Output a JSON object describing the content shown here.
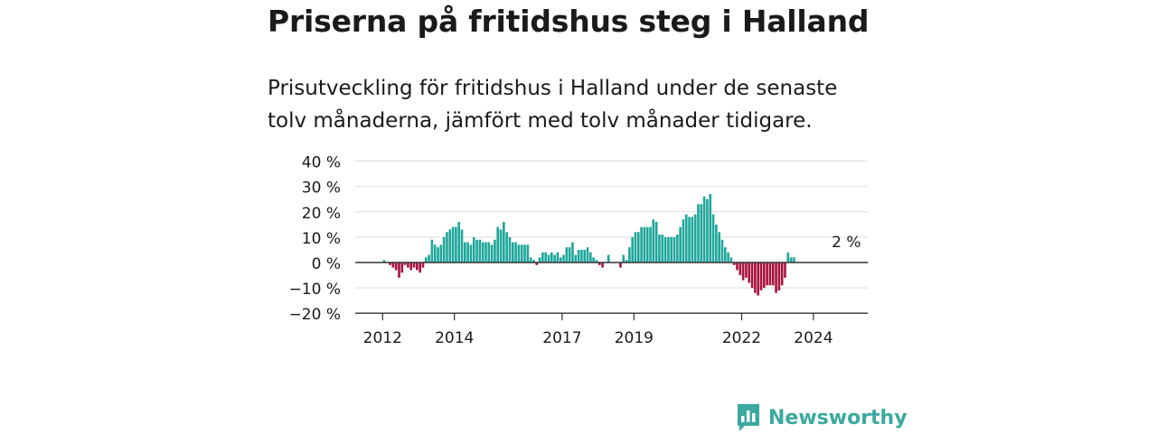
{
  "title": "Priserna på fritidshus steg i Halland",
  "subtitle": "Prisutveckling för fritidshus i Halland under de senaste tolv månaderna, jämfört med tolv månader tidigare.",
  "brand": "Newsworthy",
  "colors": {
    "positive": "#1ea69a",
    "negative": "#a8123e",
    "grid": "#dcdcdc",
    "axis": "#333333",
    "brand": "#3aa99f"
  },
  "chart_data": {
    "type": "bar",
    "ylim": [
      -20,
      40
    ],
    "yticks": [
      {
        "value": 40,
        "label": "40 %"
      },
      {
        "value": 30,
        "label": "30 %"
      },
      {
        "value": 20,
        "label": "20 %"
      },
      {
        "value": 10,
        "label": "10 %"
      },
      {
        "value": 0,
        "label": "0 %"
      },
      {
        "value": -10,
        "label": "−10 %"
      },
      {
        "value": -20,
        "label": "−20 %"
      }
    ],
    "xticks": [
      {
        "date": "2012-01",
        "label": "2012"
      },
      {
        "date": "2014-01",
        "label": "2014"
      },
      {
        "date": "2017-01",
        "label": "2017"
      },
      {
        "date": "2019-01",
        "label": "2019"
      },
      {
        "date": "2022-01",
        "label": "2022"
      },
      {
        "date": "2024-01",
        "label": "2024"
      }
    ],
    "annotation": {
      "label": "2 %",
      "date": "2024-12"
    },
    "start": "2011-04",
    "values": [
      0,
      0,
      0,
      0,
      0,
      0,
      0,
      0,
      0,
      1,
      0,
      -1,
      -2,
      -3,
      -6,
      -4,
      -1,
      -2,
      -3,
      -2,
      -3,
      -4,
      -2,
      2,
      3,
      9,
      7,
      6,
      7,
      10,
      12,
      13,
      14,
      14,
      16,
      13,
      8,
      8,
      7,
      10,
      9,
      9,
      8,
      8,
      8,
      7,
      9,
      14,
      13,
      16,
      12,
      10,
      8,
      8,
      7,
      7,
      7,
      7,
      2,
      1,
      -1,
      2,
      4,
      4,
      3,
      4,
      3,
      4,
      2,
      3,
      6,
      6,
      8,
      3,
      5,
      5,
      5,
      6,
      4,
      2,
      1,
      -1,
      -2,
      0,
      3,
      0,
      0,
      0,
      -2,
      3,
      1,
      6,
      10,
      12,
      12,
      14,
      14,
      14,
      14,
      17,
      16,
      11,
      11,
      10,
      10,
      10,
      10,
      11,
      14,
      17,
      19,
      18,
      18,
      19,
      23,
      23,
      26,
      25,
      27,
      19,
      15,
      12,
      9,
      6,
      4,
      2,
      -1,
      -3,
      -5,
      -7,
      -6,
      -8,
      -10,
      -12,
      -13,
      -11,
      -10,
      -9,
      -9,
      -9,
      -12,
      -11,
      -9,
      -6,
      4,
      2,
      2
    ]
  }
}
